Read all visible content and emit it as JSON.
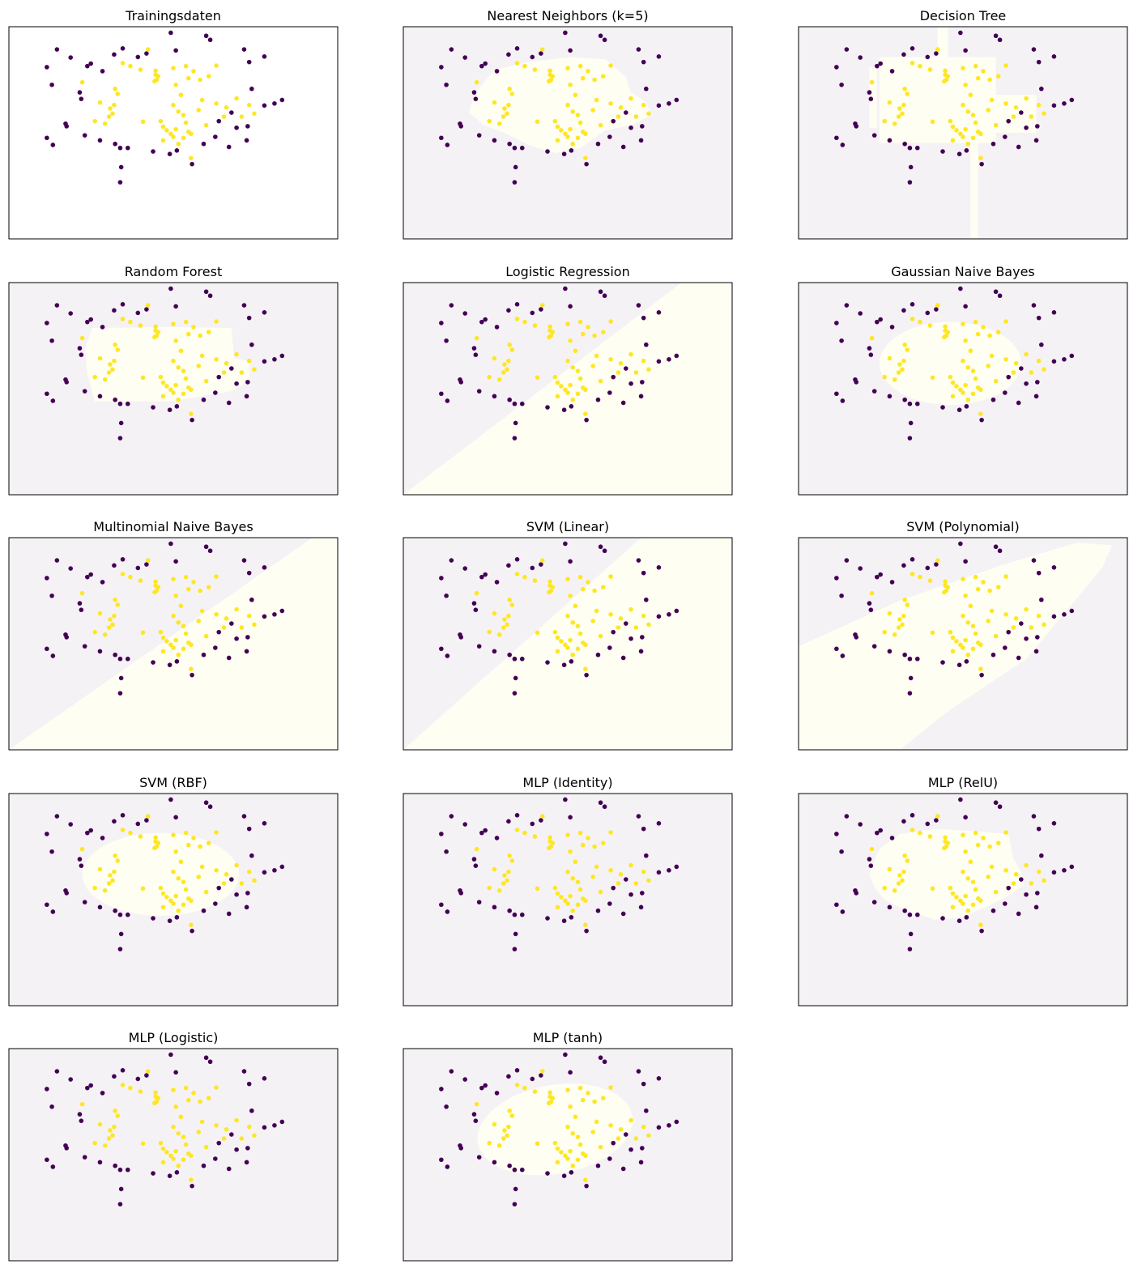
{
  "colors": {
    "class0_point": "#440154",
    "class1_point": "#fde725",
    "class0_region": "#f5f2f6",
    "class1_region": "#fffef3",
    "frame": "#000000"
  },
  "chart_data": {
    "type": "scatter",
    "xlim": [
      -3,
      3.5
    ],
    "ylim": [
      -2.6,
      1.6
    ],
    "grid": false,
    "points": [
      {
        "x": -2.25,
        "y": 0.8,
        "c": 0
      },
      {
        "x": -2.05,
        "y": 1.15,
        "c": 0
      },
      {
        "x": -1.78,
        "y": 0.99,
        "c": 0
      },
      {
        "x": -2.15,
        "y": 0.45,
        "c": 0
      },
      {
        "x": -1.45,
        "y": 0.82,
        "c": 0
      },
      {
        "x": -1.38,
        "y": 0.87,
        "c": 0
      },
      {
        "x": -1.15,
        "y": 0.72,
        "c": 0
      },
      {
        "x": -0.92,
        "y": 1.05,
        "c": 0
      },
      {
        "x": -0.75,
        "y": 1.17,
        "c": 0
      },
      {
        "x": -0.45,
        "y": 1.0,
        "c": 0
      },
      {
        "x": -0.28,
        "y": 1.07,
        "c": 0
      },
      {
        "x": 0.2,
        "y": 1.48,
        "c": 0
      },
      {
        "x": 0.3,
        "y": 1.13,
        "c": 0
      },
      {
        "x": 0.9,
        "y": 1.42,
        "c": 0
      },
      {
        "x": 0.98,
        "y": 1.34,
        "c": 0
      },
      {
        "x": 1.65,
        "y": 1.15,
        "c": 0
      },
      {
        "x": 1.75,
        "y": 0.9,
        "c": 0
      },
      {
        "x": 2.05,
        "y": 1.01,
        "c": 0
      },
      {
        "x": -1.6,
        "y": 0.3,
        "c": 0
      },
      {
        "x": -1.57,
        "y": 0.17,
        "c": 0
      },
      {
        "x": 1.8,
        "y": 0.37,
        "c": 0
      },
      {
        "x": 2.05,
        "y": 0.04,
        "c": 0
      },
      {
        "x": 2.25,
        "y": 0.08,
        "c": 0
      },
      {
        "x": 2.4,
        "y": 0.15,
        "c": 0
      },
      {
        "x": -1.88,
        "y": -0.32,
        "c": 0
      },
      {
        "x": -1.86,
        "y": -0.37,
        "c": 0
      },
      {
        "x": -2.25,
        "y": -0.6,
        "c": 0
      },
      {
        "x": -2.13,
        "y": -0.74,
        "c": 0
      },
      {
        "x": -1.5,
        "y": -0.55,
        "c": 0
      },
      {
        "x": -1.2,
        "y": -0.65,
        "c": 0
      },
      {
        "x": -0.9,
        "y": -0.72,
        "c": 0
      },
      {
        "x": -0.8,
        "y": -0.8,
        "c": 0
      },
      {
        "x": -0.65,
        "y": -0.8,
        "c": 0
      },
      {
        "x": -0.15,
        "y": -0.87,
        "c": 0
      },
      {
        "x": 0.18,
        "y": -0.92,
        "c": 0
      },
      {
        "x": 0.32,
        "y": -0.85,
        "c": 0
      },
      {
        "x": 0.62,
        "y": -1.12,
        "c": 0
      },
      {
        "x": 0.85,
        "y": -0.72,
        "c": 0
      },
      {
        "x": 1.08,
        "y": -0.58,
        "c": 0
      },
      {
        "x": 1.35,
        "y": -0.78,
        "c": 0
      },
      {
        "x": 1.7,
        "y": -0.65,
        "c": 0
      },
      {
        "x": 1.15,
        "y": -0.27,
        "c": 0
      },
      {
        "x": 1.5,
        "y": -0.4,
        "c": 0
      },
      {
        "x": 1.72,
        "y": -0.37,
        "c": 0
      },
      {
        "x": 1.4,
        "y": -0.1,
        "c": 0
      },
      {
        "x": -0.78,
        "y": -1.18,
        "c": 0
      },
      {
        "x": -0.8,
        "y": -1.48,
        "c": 0
      },
      {
        "x": -0.75,
        "y": 0.88,
        "c": 1
      },
      {
        "x": -0.6,
        "y": 0.82,
        "c": 1
      },
      {
        "x": -0.4,
        "y": 0.75,
        "c": 1
      },
      {
        "x": -0.25,
        "y": 1.15,
        "c": 1
      },
      {
        "x": -0.1,
        "y": 0.65,
        "c": 1
      },
      {
        "x": -0.12,
        "y": 0.52,
        "c": 1
      },
      {
        "x": -0.08,
        "y": 0.55,
        "c": 1
      },
      {
        "x": -0.05,
        "y": 0.62,
        "c": 1
      },
      {
        "x": -0.1,
        "y": 0.73,
        "c": 1
      },
      {
        "x": 0.25,
        "y": 0.78,
        "c": 1
      },
      {
        "x": 0.5,
        "y": 0.82,
        "c": 1
      },
      {
        "x": 0.55,
        "y": 0.58,
        "c": 1
      },
      {
        "x": 0.3,
        "y": 0.45,
        "c": 1
      },
      {
        "x": 0.4,
        "y": 0.25,
        "c": 1
      },
      {
        "x": 0.65,
        "y": 0.72,
        "c": 1
      },
      {
        "x": 0.78,
        "y": 0.55,
        "c": 1
      },
      {
        "x": 0.95,
        "y": 0.62,
        "c": 1
      },
      {
        "x": 1.1,
        "y": 0.83,
        "c": 1
      },
      {
        "x": -1.55,
        "y": 0.5,
        "c": 1
      },
      {
        "x": -1.2,
        "y": 0.1,
        "c": 1
      },
      {
        "x": -0.9,
        "y": 0.37,
        "c": 1
      },
      {
        "x": -0.85,
        "y": 0.27,
        "c": 1
      },
      {
        "x": -0.92,
        "y": 0.05,
        "c": 1
      },
      {
        "x": -1.0,
        "y": -0.02,
        "c": 1
      },
      {
        "x": -0.95,
        "y": -0.12,
        "c": 1
      },
      {
        "x": -1.02,
        "y": -0.18,
        "c": 1
      },
      {
        "x": -1.1,
        "y": -0.32,
        "c": 1
      },
      {
        "x": -1.3,
        "y": -0.27,
        "c": 1
      },
      {
        "x": -0.35,
        "y": -0.28,
        "c": 1
      },
      {
        "x": 0.0,
        "y": -0.27,
        "c": 1
      },
      {
        "x": 0.05,
        "y": -0.38,
        "c": 1
      },
      {
        "x": 0.12,
        "y": -0.45,
        "c": 1
      },
      {
        "x": 0.2,
        "y": -0.52,
        "c": 1
      },
      {
        "x": 0.25,
        "y": -0.58,
        "c": 1
      },
      {
        "x": 0.3,
        "y": -0.43,
        "c": 1
      },
      {
        "x": 0.5,
        "y": -0.3,
        "c": 1
      },
      {
        "x": 0.55,
        "y": -0.48,
        "c": 1
      },
      {
        "x": 0.6,
        "y": -0.52,
        "c": 1
      },
      {
        "x": 0.45,
        "y": -0.6,
        "c": 1
      },
      {
        "x": 0.35,
        "y": -0.72,
        "c": 1
      },
      {
        "x": 0.05,
        "y": -0.65,
        "c": 1
      },
      {
        "x": 0.25,
        "y": 0.05,
        "c": 1
      },
      {
        "x": 0.35,
        "y": -0.08,
        "c": 1
      },
      {
        "x": 0.45,
        "y": -0.15,
        "c": 1
      },
      {
        "x": 0.75,
        "y": -0.05,
        "c": 1
      },
      {
        "x": 0.82,
        "y": 0.15,
        "c": 1
      },
      {
        "x": 1.1,
        "y": 0.08,
        "c": 1
      },
      {
        "x": 1.25,
        "y": -0.18,
        "c": 1
      },
      {
        "x": 0.9,
        "y": -0.35,
        "c": 1
      },
      {
        "x": 1.3,
        "y": 0.0,
        "c": 1
      },
      {
        "x": 1.5,
        "y": 0.18,
        "c": 1
      },
      {
        "x": 1.6,
        "y": -0.18,
        "c": 1
      },
      {
        "x": 1.75,
        "y": 0.05,
        "c": 1
      },
      {
        "x": 1.85,
        "y": -0.12,
        "c": 1
      },
      {
        "x": 0.6,
        "y": -1.0,
        "c": 1
      }
    ],
    "panels": [
      {
        "title": "Trainingsdaten",
        "region": {
          "kind": "none"
        }
      },
      {
        "title": "Nearest Neighbors (k=5)",
        "region": {
          "kind": "polygon",
          "pts": [
            [
              -1.6,
              0.25
            ],
            [
              -1.2,
              0.75
            ],
            [
              -0.5,
              0.9
            ],
            [
              0.3,
              1.0
            ],
            [
              1.0,
              0.95
            ],
            [
              1.4,
              0.6
            ],
            [
              1.5,
              0.3
            ],
            [
              1.8,
              0.1
            ],
            [
              1.9,
              -0.15
            ],
            [
              1.5,
              -0.35
            ],
            [
              1.0,
              -0.45
            ],
            [
              0.5,
              -0.8
            ],
            [
              0.0,
              -0.9
            ],
            [
              -0.5,
              -0.75
            ],
            [
              -1.0,
              -0.5
            ],
            [
              -1.4,
              -0.35
            ],
            [
              -1.7,
              -0.1
            ]
          ]
        }
      },
      {
        "title": "Decision Tree",
        "region": {
          "kind": "rects",
          "rects": [
            [
              -1.4,
              -0.7,
              0.9,
              1.0
            ],
            [
              -1.6,
              -0.4,
              -1.45,
              0.8
            ],
            [
              0.9,
              -0.5,
              1.7,
              0.25
            ],
            [
              -0.25,
              0.9,
              -0.05,
              1.6
            ],
            [
              0.4,
              -2.6,
              0.55,
              -0.7
            ]
          ]
        }
      },
      {
        "title": "Random Forest",
        "region": {
          "kind": "polygon",
          "pts": [
            [
              -1.35,
              0.7
            ],
            [
              0.3,
              0.72
            ],
            [
              1.4,
              0.7
            ],
            [
              1.45,
              0.1
            ],
            [
              1.75,
              0.05
            ],
            [
              1.75,
              -0.35
            ],
            [
              1.4,
              -0.55
            ],
            [
              0.2,
              -0.75
            ],
            [
              -1.3,
              -0.75
            ],
            [
              -1.45,
              -0.2
            ],
            [
              -1.5,
              0.3
            ]
          ]
        }
      },
      {
        "title": "Logistic Regression",
        "region": {
          "kind": "polygon",
          "pts": [
            [
              -3,
              -2.6
            ],
            [
              3.5,
              -2.6
            ],
            [
              3.5,
              1.6
            ],
            [
              2.5,
              1.6
            ]
          ]
        }
      },
      {
        "title": "Gaussian Naive Bayes",
        "region": {
          "kind": "ellipse",
          "cx": 0.0,
          "cy": 0.0,
          "rx": 1.4,
          "ry": 0.82
        }
      },
      {
        "title": "Multinomial Naive Bayes",
        "region": {
          "kind": "polygon",
          "pts": [
            [
              -3,
              -2.6
            ],
            [
              3.5,
              -2.6
            ],
            [
              3.5,
              1.6
            ],
            [
              3.0,
              1.6
            ]
          ]
        }
      },
      {
        "title": "SVM (Linear)",
        "region": {
          "kind": "polygon",
          "pts": [
            [
              -3,
              -2.6
            ],
            [
              3.5,
              -2.6
            ],
            [
              3.5,
              1.6
            ],
            [
              1.7,
              1.6
            ]
          ]
        }
      },
      {
        "title": "SVM (Polynomial)",
        "region": {
          "kind": "polygon",
          "pts": [
            [
              -3,
              -0.55
            ],
            [
              -1.0,
              0.35
            ],
            [
              1.0,
              1.05
            ],
            [
              2.5,
              1.5
            ],
            [
              3.2,
              1.45
            ],
            [
              3.0,
              1.0
            ],
            [
              1.5,
              -0.8
            ],
            [
              0.0,
              -1.8
            ],
            [
              -1.0,
              -2.6
            ],
            [
              -3,
              -2.6
            ]
          ]
        }
      },
      {
        "title": "SVM (RBF)",
        "region": {
          "kind": "ellipse",
          "cx": 0.0,
          "cy": 0.0,
          "rx": 1.55,
          "ry": 0.82
        }
      },
      {
        "title": "MLP (Identity)",
        "region": {
          "kind": "none-shaded"
        }
      },
      {
        "title": "MLP (RelU)",
        "region": {
          "kind": "polygon",
          "pts": [
            [
              -1.6,
              0.0
            ],
            [
              -1.4,
              0.5
            ],
            [
              -1.0,
              0.8
            ],
            [
              -0.3,
              0.9
            ],
            [
              0.5,
              0.85
            ],
            [
              1.15,
              0.8
            ],
            [
              1.25,
              0.3
            ],
            [
              1.4,
              0.05
            ],
            [
              1.45,
              -0.2
            ],
            [
              1.2,
              -0.4
            ],
            [
              0.7,
              -0.65
            ],
            [
              0.2,
              -0.85
            ],
            [
              -0.3,
              -0.9
            ],
            [
              -0.9,
              -0.7
            ],
            [
              -1.3,
              -0.5
            ],
            [
              -1.5,
              -0.25
            ]
          ]
        }
      },
      {
        "title": "MLP (Logistic)",
        "region": {
          "kind": "none-shaded"
        }
      },
      {
        "title": "MLP (tanh)",
        "region": {
          "kind": "ellipse",
          "cx": 0.0,
          "cy": 0.0,
          "rx": 1.55,
          "ry": 0.88,
          "rotate": -10
        }
      }
    ]
  }
}
